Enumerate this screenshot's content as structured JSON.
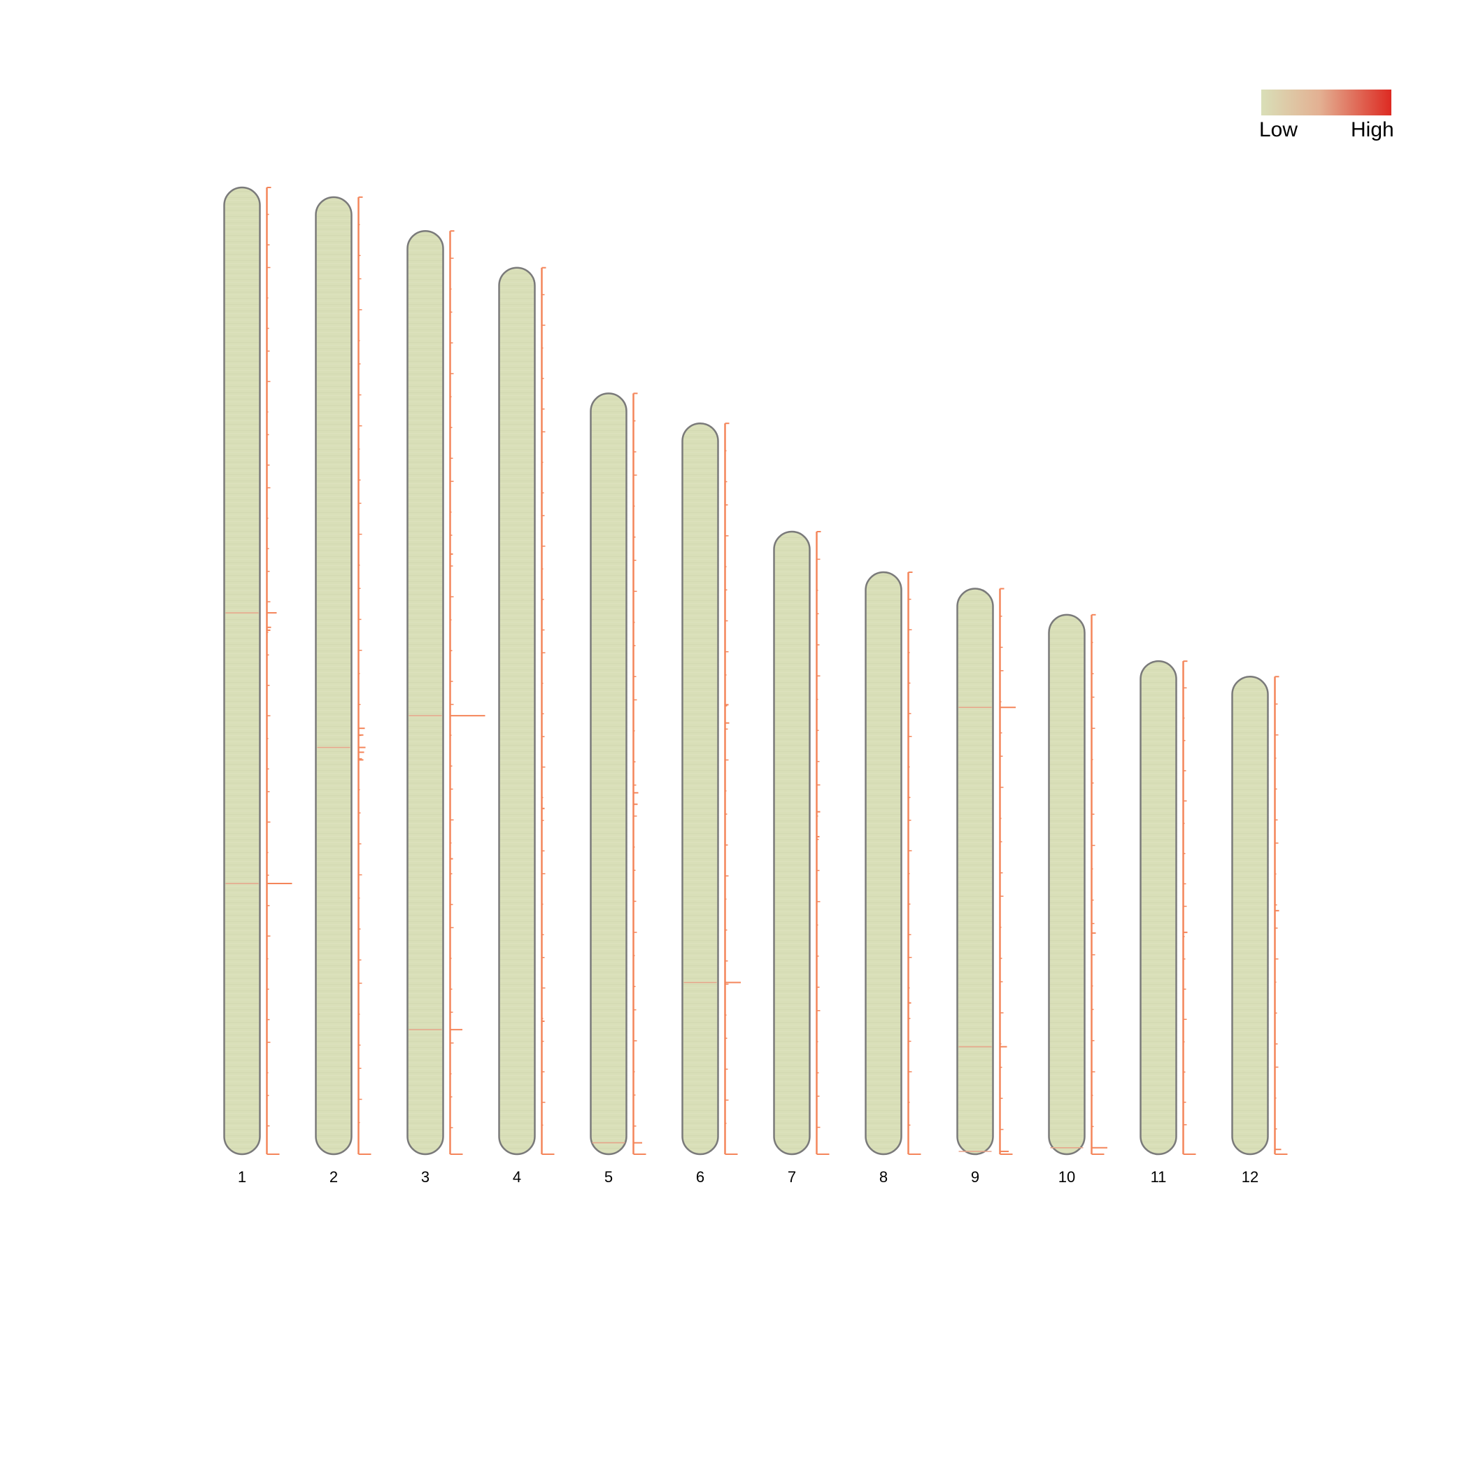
{
  "legend": {
    "low_label": "Low",
    "high_label": "High",
    "low_color": "#d9dfb8",
    "mid_color": "#e3b092",
    "high_color": "#dd2a22"
  },
  "colors": {
    "chromosome_fill": "#d9dfb8",
    "chromosome_stroke": "#7a7a7a",
    "density_line": "#f4855a",
    "label": "#000000"
  },
  "chart_data": {
    "type": "ideogram",
    "max_length": 1.0,
    "chromosomes": [
      {
        "label": "1",
        "length": 1.0,
        "peaks": [
          [
            0.44,
            0.28
          ],
          [
            0.455,
            0.12
          ],
          [
            0.458,
            0.1
          ],
          [
            0.72,
            0.72
          ]
        ]
      },
      {
        "label": "2",
        "length": 0.99,
        "peaks": [
          [
            0.555,
            0.18
          ],
          [
            0.562,
            0.14
          ],
          [
            0.575,
            0.2
          ],
          [
            0.58,
            0.16
          ],
          [
            0.588,
            0.14
          ]
        ]
      },
      {
        "label": "3",
        "length": 0.955,
        "peaks": [
          [
            0.525,
            1.0
          ],
          [
            0.865,
            0.35
          ],
          [
            0.35,
            0.08
          ],
          [
            0.68,
            0.08
          ]
        ]
      },
      {
        "label": "4",
        "length": 0.917,
        "peaks": [
          [
            0.61,
            0.06
          ],
          [
            0.85,
            0.05
          ]
        ]
      },
      {
        "label": "5",
        "length": 0.787,
        "peaks": [
          [
            0.525,
            0.14
          ],
          [
            0.54,
            0.12
          ],
          [
            0.985,
            0.25
          ]
        ]
      },
      {
        "label": "6",
        "length": 0.756,
        "peaks": [
          [
            0.385,
            0.1
          ],
          [
            0.41,
            0.12
          ],
          [
            0.765,
            0.45
          ]
        ]
      },
      {
        "label": "7",
        "length": 0.644,
        "peaks": [
          [
            0.45,
            0.1
          ],
          [
            0.49,
            0.08
          ]
        ]
      },
      {
        "label": "8",
        "length": 0.602,
        "peaks": [
          [
            0.74,
            0.05
          ]
        ]
      },
      {
        "label": "9",
        "length": 0.585,
        "peaks": [
          [
            0.21,
            0.45
          ],
          [
            0.81,
            0.2
          ],
          [
            0.995,
            0.25
          ]
        ]
      },
      {
        "label": "10",
        "length": 0.558,
        "peaks": [
          [
            0.59,
            0.12
          ],
          [
            0.988,
            0.45
          ]
        ]
      },
      {
        "label": "11",
        "length": 0.51,
        "peaks": [
          [
            0.55,
            0.12
          ]
        ]
      },
      {
        "label": "12",
        "length": 0.494,
        "peaks": [
          [
            0.49,
            0.12
          ],
          [
            0.99,
            0.18
          ]
        ]
      }
    ]
  }
}
